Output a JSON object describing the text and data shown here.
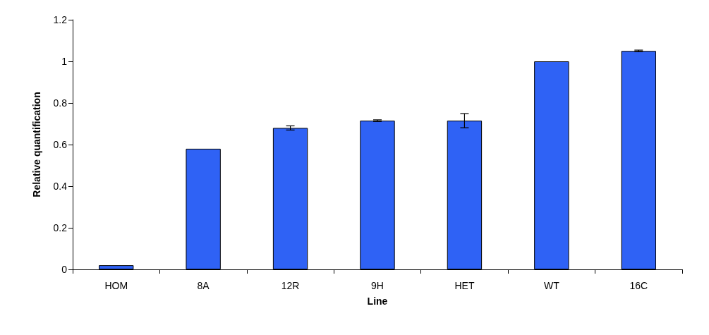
{
  "chart_data": {
    "type": "bar",
    "xlabel": "Line",
    "ylabel": "Relative quantification",
    "categories": [
      "HOM",
      "8A",
      "12R",
      "9H",
      "HET",
      "WT",
      "16C"
    ],
    "values": [
      0.02,
      0.58,
      0.68,
      0.715,
      0.715,
      1.0,
      1.05
    ],
    "errors": [
      null,
      null,
      0.01,
      0.004,
      0.034,
      null,
      0.004
    ],
    "color": "#2f62f5",
    "ylim": [
      0,
      1.2
    ],
    "yticks": [
      0,
      0.2,
      0.4,
      0.6,
      0.8,
      1,
      1.2
    ],
    "grid": false
  }
}
